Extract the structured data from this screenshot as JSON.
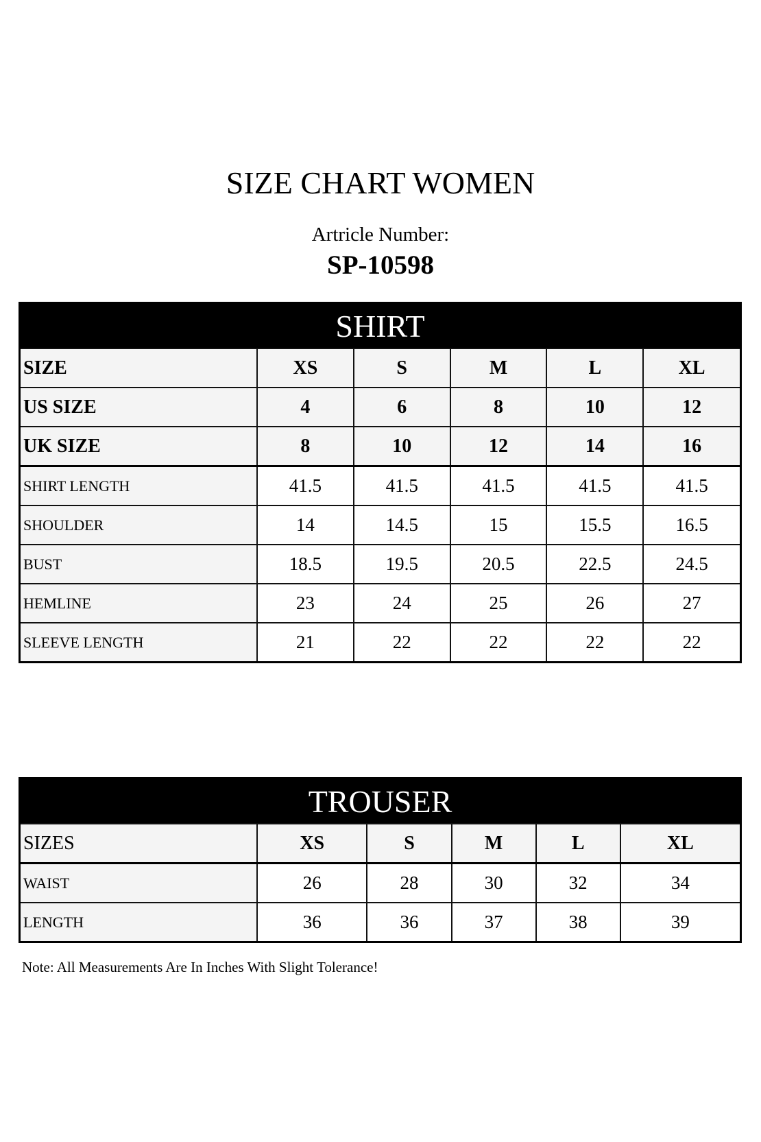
{
  "title": "SIZE CHART WOMEN",
  "article_label": "Artricle Number:",
  "article_number": "SP-10598",
  "shirt": {
    "heading": "SHIRT",
    "header_rows": [
      {
        "label": "SIZE",
        "values": [
          "XS",
          "S",
          "M",
          "L",
          "XL"
        ]
      },
      {
        "label": "US SIZE",
        "values": [
          "4",
          "6",
          "8",
          "10",
          "12"
        ]
      },
      {
        "label": "UK SIZE",
        "values": [
          "8",
          "10",
          "12",
          "14",
          "16"
        ]
      }
    ],
    "rows": [
      {
        "label": "SHIRT LENGTH",
        "values": [
          "41.5",
          "41.5",
          "41.5",
          "41.5",
          "41.5"
        ]
      },
      {
        "label": "SHOULDER",
        "values": [
          "14",
          "14.5",
          "15",
          "15.5",
          "16.5"
        ]
      },
      {
        "label": "BUST",
        "values": [
          "18.5",
          "19.5",
          "20.5",
          "22.5",
          "24.5"
        ]
      },
      {
        "label": "HEMLINE",
        "values": [
          "23",
          "24",
          "25",
          "26",
          "27"
        ]
      },
      {
        "label": "SLEEVE LENGTH",
        "values": [
          "21",
          "22",
          "22",
          "22",
          "22"
        ]
      }
    ]
  },
  "trouser": {
    "heading": "TROUSER",
    "header_row": {
      "label": "SIZES",
      "values": [
        "XS",
        "S",
        "M",
        "L",
        "XL"
      ]
    },
    "rows": [
      {
        "label": "WAIST",
        "values": [
          "26",
          "28",
          "30",
          "32",
          "34"
        ]
      },
      {
        "label": "LENGTH",
        "values": [
          "36",
          "36",
          "37",
          "38",
          "39"
        ]
      }
    ]
  },
  "note": "Note: All Measurements Are In Inches With Slight Tolerance!"
}
